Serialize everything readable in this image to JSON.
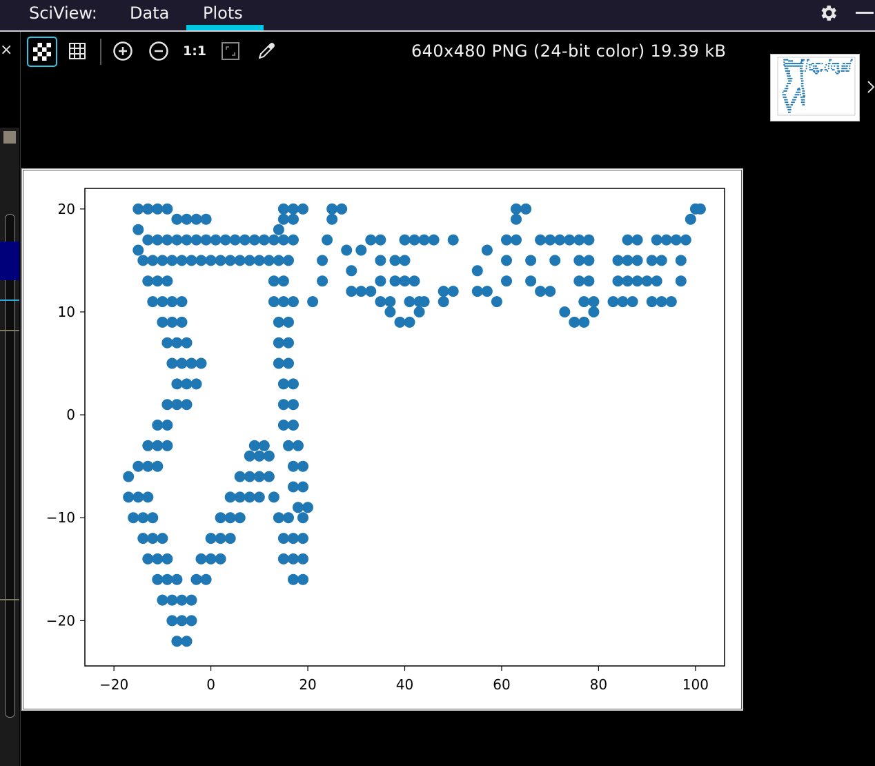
{
  "topbar": {
    "brand": "SciView:",
    "tabs": [
      {
        "label": "Data",
        "active": false
      },
      {
        "label": "Plots",
        "active": true
      }
    ],
    "accent_color": "#00c8e0"
  },
  "toolbar": {
    "tools": [
      {
        "name": "transparency-checker",
        "icon": "checker-icon",
        "active": true
      },
      {
        "name": "pixel-grid",
        "icon": "grid-icon"
      },
      {
        "name": "zoom-in",
        "icon": "zoom-in-icon"
      },
      {
        "name": "zoom-out",
        "icon": "zoom-out-icon"
      },
      {
        "name": "actual-size",
        "label": "1:1"
      },
      {
        "name": "fit-to-window",
        "icon": "fit-icon"
      },
      {
        "name": "color-picker",
        "icon": "eyedropper-icon"
      }
    ],
    "image_info": "640x480 PNG (24-bit color) 19.39 kB"
  },
  "left_strip": {
    "close_glyph": "×"
  },
  "chart_data": {
    "type": "scatter",
    "title": "",
    "xlabel": "",
    "ylabel": "",
    "xlim": [
      -26,
      106
    ],
    "ylim": [
      -24.4,
      22
    ],
    "xticks": [
      -20,
      0,
      20,
      40,
      60,
      80,
      100
    ],
    "yticks": [
      -20,
      -10,
      0,
      10,
      20
    ],
    "xtick_labels": [
      "−20",
      "0",
      "20",
      "40",
      "60",
      "80",
      "100"
    ],
    "ytick_labels": [
      "−20",
      "−10",
      "0",
      "10",
      "20"
    ],
    "marker_color": "#1f77b4",
    "grid": false,
    "series": [
      {
        "points": [
          [
            -15,
            20
          ],
          [
            -13,
            20
          ],
          [
            -11,
            20
          ],
          [
            -9,
            20
          ],
          [
            -15,
            18
          ],
          [
            -15,
            16
          ],
          [
            -13,
            17
          ],
          [
            -11,
            17
          ],
          [
            -9,
            17
          ],
          [
            -7,
            17
          ],
          [
            -5,
            17
          ],
          [
            -3,
            17
          ],
          [
            -1,
            17
          ],
          [
            1,
            17
          ],
          [
            3,
            17
          ],
          [
            5,
            17
          ],
          [
            7,
            17
          ],
          [
            9,
            17
          ],
          [
            11,
            17
          ],
          [
            13,
            17
          ],
          [
            15,
            17
          ],
          [
            17,
            17
          ],
          [
            -7,
            19
          ],
          [
            -5,
            19
          ],
          [
            -3,
            19
          ],
          [
            -1,
            19
          ],
          [
            -14,
            15
          ],
          [
            -12,
            15
          ],
          [
            -10,
            15
          ],
          [
            -8,
            15
          ],
          [
            -6,
            15
          ],
          [
            -4,
            15
          ],
          [
            -2,
            15
          ],
          [
            0,
            15
          ],
          [
            2,
            15
          ],
          [
            4,
            15
          ],
          [
            6,
            15
          ],
          [
            8,
            15
          ],
          [
            10,
            15
          ],
          [
            12,
            15
          ],
          [
            14,
            15
          ],
          [
            16,
            15
          ],
          [
            -13,
            13
          ],
          [
            -11,
            13
          ],
          [
            -9,
            13
          ],
          [
            -12,
            11
          ],
          [
            -10,
            11
          ],
          [
            -8,
            11
          ],
          [
            -6,
            11
          ],
          [
            -10,
            9
          ],
          [
            -8,
            9
          ],
          [
            -6,
            9
          ],
          [
            -9,
            7
          ],
          [
            -7,
            7
          ],
          [
            -5,
            7
          ],
          [
            -8,
            5
          ],
          [
            -6,
            5
          ],
          [
            -4,
            5
          ],
          [
            -2,
            5
          ],
          [
            -7,
            3
          ],
          [
            -5,
            3
          ],
          [
            -3,
            3
          ],
          [
            -9,
            1
          ],
          [
            -7,
            1
          ],
          [
            -5,
            1
          ],
          [
            -11,
            -1
          ],
          [
            -9,
            -1
          ],
          [
            -13,
            -3
          ],
          [
            -11,
            -3
          ],
          [
            -9,
            -3
          ],
          [
            -15,
            -5
          ],
          [
            -13,
            -5
          ],
          [
            -11,
            -5
          ],
          [
            -17,
            -6
          ],
          [
            -17,
            -8
          ],
          [
            -15,
            -8
          ],
          [
            -13,
            -8
          ],
          [
            -16,
            -10
          ],
          [
            -14,
            -10
          ],
          [
            -12,
            -10
          ],
          [
            -14,
            -12
          ],
          [
            -12,
            -12
          ],
          [
            -10,
            -12
          ],
          [
            -13,
            -14
          ],
          [
            -11,
            -14
          ],
          [
            -9,
            -14
          ],
          [
            -11,
            -16
          ],
          [
            -9,
            -16
          ],
          [
            -7,
            -16
          ],
          [
            -10,
            -18
          ],
          [
            -8,
            -18
          ],
          [
            -6,
            -18
          ],
          [
            -4,
            -18
          ],
          [
            -8,
            -20
          ],
          [
            -6,
            -20
          ],
          [
            -4,
            -20
          ],
          [
            -7,
            -22
          ],
          [
            -5,
            -22
          ],
          [
            -3,
            -16
          ],
          [
            -1,
            -16
          ],
          [
            -2,
            -14
          ],
          [
            0,
            -14
          ],
          [
            2,
            -14
          ],
          [
            0,
            -12
          ],
          [
            2,
            -12
          ],
          [
            4,
            -12
          ],
          [
            2,
            -10
          ],
          [
            4,
            -10
          ],
          [
            6,
            -10
          ],
          [
            4,
            -8
          ],
          [
            6,
            -8
          ],
          [
            8,
            -8
          ],
          [
            10,
            -8
          ],
          [
            6,
            -6
          ],
          [
            8,
            -6
          ],
          [
            10,
            -6
          ],
          [
            8,
            -4
          ],
          [
            10,
            -4
          ],
          [
            12,
            -4
          ],
          [
            9,
            -3
          ],
          [
            11,
            -3
          ],
          [
            12,
            -6
          ],
          [
            13,
            -8
          ],
          [
            14,
            -10
          ],
          [
            16,
            -10
          ],
          [
            15,
            -12
          ],
          [
            17,
            -12
          ],
          [
            15,
            -14
          ],
          [
            17,
            -14
          ],
          [
            19,
            -14
          ],
          [
            17,
            -16
          ],
          [
            19,
            -16
          ],
          [
            19,
            -10
          ],
          [
            19,
            -12
          ],
          [
            13,
            13
          ],
          [
            15,
            13
          ],
          [
            13,
            11
          ],
          [
            15,
            11
          ],
          [
            17,
            11
          ],
          [
            14,
            9
          ],
          [
            16,
            9
          ],
          [
            14,
            7
          ],
          [
            16,
            7
          ],
          [
            14,
            5
          ],
          [
            16,
            5
          ],
          [
            15,
            3
          ],
          [
            17,
            3
          ],
          [
            15,
            1
          ],
          [
            17,
            1
          ],
          [
            15,
            -1
          ],
          [
            17,
            -1
          ],
          [
            16,
            -3
          ],
          [
            18,
            -3
          ],
          [
            17,
            -5
          ],
          [
            19,
            -5
          ],
          [
            17,
            -7
          ],
          [
            19,
            -7
          ],
          [
            18,
            -9
          ],
          [
            20,
            -9
          ],
          [
            15,
            19
          ],
          [
            15,
            20
          ],
          [
            17,
            20
          ],
          [
            19,
            20
          ],
          [
            14,
            18
          ],
          [
            17,
            19
          ],
          [
            21,
            11
          ],
          [
            23,
            13
          ],
          [
            23,
            15
          ],
          [
            24,
            17
          ],
          [
            25,
            19
          ],
          [
            25,
            20
          ],
          [
            27,
            20
          ],
          [
            28,
            16
          ],
          [
            29,
            14
          ],
          [
            29,
            12
          ],
          [
            31,
            12
          ],
          [
            33,
            12
          ],
          [
            31,
            16
          ],
          [
            33,
            17
          ],
          [
            35,
            17
          ],
          [
            35,
            15
          ],
          [
            35,
            13
          ],
          [
            35,
            11
          ],
          [
            37,
            11
          ],
          [
            40,
            17
          ],
          [
            42,
            17
          ],
          [
            44,
            17
          ],
          [
            46,
            17
          ],
          [
            38,
            15
          ],
          [
            40,
            15
          ],
          [
            38,
            13
          ],
          [
            40,
            13
          ],
          [
            42,
            13
          ],
          [
            41,
            11
          ],
          [
            43,
            11
          ],
          [
            44,
            11
          ],
          [
            37,
            10
          ],
          [
            39,
            9
          ],
          [
            41,
            9
          ],
          [
            43,
            10
          ],
          [
            50,
            17
          ],
          [
            48,
            12
          ],
          [
            50,
            12
          ],
          [
            48,
            11
          ],
          [
            57,
            16
          ],
          [
            55,
            14
          ],
          [
            55,
            12
          ],
          [
            57,
            12
          ],
          [
            59,
            11
          ],
          [
            61,
            13
          ],
          [
            61,
            15
          ],
          [
            61,
            17
          ],
          [
            63,
            17
          ],
          [
            63,
            19
          ],
          [
            63,
            20
          ],
          [
            65,
            20
          ],
          [
            66,
            15
          ],
          [
            66,
            13
          ],
          [
            68,
            12
          ],
          [
            70,
            12
          ],
          [
            71,
            15
          ],
          [
            72,
            17
          ],
          [
            70,
            17
          ],
          [
            68,
            17
          ],
          [
            74,
            17
          ],
          [
            76,
            17
          ],
          [
            78,
            17
          ],
          [
            76,
            15
          ],
          [
            78,
            15
          ],
          [
            76,
            13
          ],
          [
            78,
            13
          ],
          [
            77,
            11
          ],
          [
            79,
            11
          ],
          [
            73,
            10
          ],
          [
            75,
            9
          ],
          [
            77,
            9
          ],
          [
            79,
            10
          ],
          [
            86,
            17
          ],
          [
            88,
            17
          ],
          [
            84,
            15
          ],
          [
            86,
            15
          ],
          [
            84,
            13
          ],
          [
            86,
            13
          ],
          [
            83,
            11
          ],
          [
            85,
            11
          ],
          [
            87,
            11
          ],
          [
            88,
            13
          ],
          [
            88,
            15
          ],
          [
            92,
            17
          ],
          [
            94,
            17
          ],
          [
            96,
            17
          ],
          [
            91,
            15
          ],
          [
            93,
            15
          ],
          [
            90,
            13
          ],
          [
            92,
            13
          ],
          [
            91,
            11
          ],
          [
            93,
            11
          ],
          [
            95,
            11
          ],
          [
            97,
            13
          ],
          [
            97,
            15
          ],
          [
            98,
            17
          ],
          [
            99,
            19
          ],
          [
            100,
            20
          ],
          [
            101,
            20
          ]
        ]
      }
    ]
  }
}
